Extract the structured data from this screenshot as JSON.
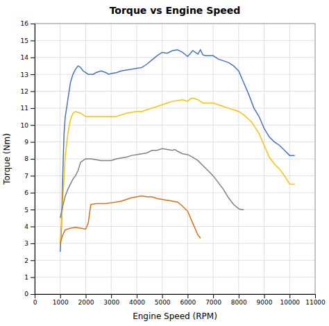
{
  "chart_data": {
    "type": "line",
    "title": "Torque vs Engine Speed",
    "xlabel": "Engine Speed (RPM)",
    "ylabel": "Torque (Nm)",
    "xlim": [
      0,
      11000
    ],
    "ylim": [
      0,
      16
    ],
    "xticks": [
      0,
      1000,
      2000,
      3000,
      4000,
      5000,
      6000,
      7000,
      8000,
      9000,
      10000,
      11000
    ],
    "yticks": [
      0,
      1,
      2,
      3,
      4,
      5,
      6,
      7,
      8,
      9,
      10,
      11,
      12,
      13,
      14,
      15,
      16
    ],
    "grid": true,
    "series": [
      {
        "color": "#4472C4",
        "x": [
          1000,
          1050,
          1100,
          1150,
          1200,
          1300,
          1400,
          1500,
          1600,
          1700,
          1800,
          1900,
          2000,
          2100,
          2200,
          2300,
          2400,
          2500,
          2600,
          2700,
          2800,
          2900,
          3000,
          3200,
          3400,
          3600,
          3800,
          4000,
          4200,
          4400,
          4600,
          4800,
          5000,
          5200,
          5400,
          5600,
          5800,
          6000,
          6200,
          6400,
          6500,
          6600,
          6700,
          6800,
          7000,
          7200,
          7400,
          7600,
          7800,
          8000,
          8200,
          8400,
          8600,
          8800,
          9000,
          9200,
          9400,
          9600,
          9800,
          10000,
          10200
        ],
        "values": [
          2.5,
          4.0,
          7.0,
          9.5,
          10.5,
          11.5,
          12.5,
          13.0,
          13.3,
          13.5,
          13.4,
          13.2,
          13.1,
          13.0,
          13.0,
          13.0,
          13.1,
          13.15,
          13.2,
          13.15,
          13.1,
          13.0,
          13.05,
          13.1,
          13.2,
          13.25,
          13.3,
          13.35,
          13.4,
          13.6,
          13.85,
          14.1,
          14.3,
          14.25,
          14.4,
          14.45,
          14.3,
          14.05,
          14.4,
          14.2,
          14.45,
          14.15,
          14.1,
          14.1,
          14.1,
          13.9,
          13.8,
          13.7,
          13.5,
          13.2,
          12.5,
          11.8,
          11.0,
          10.5,
          9.8,
          9.3,
          9.0,
          8.8,
          8.5,
          8.2,
          8.2
        ]
      },
      {
        "color": "#FFC000",
        "x": [
          1000,
          1100,
          1200,
          1300,
          1400,
          1500,
          1600,
          1700,
          1800,
          1900,
          2000,
          2200,
          2400,
          2600,
          2800,
          3000,
          3200,
          3400,
          3600,
          3800,
          4000,
          4200,
          4400,
          4600,
          4800,
          5000,
          5200,
          5400,
          5600,
          5800,
          6000,
          6100,
          6200,
          6300,
          6400,
          6600,
          6800,
          7000,
          7200,
          7400,
          7600,
          7800,
          8000,
          8200,
          8500,
          8800,
          9000,
          9200,
          9400,
          9600,
          9800,
          10000,
          10200
        ],
        "values": [
          3.0,
          5.5,
          8.2,
          9.5,
          10.3,
          10.7,
          10.8,
          10.75,
          10.7,
          10.6,
          10.5,
          10.5,
          10.5,
          10.5,
          10.5,
          10.5,
          10.5,
          10.6,
          10.7,
          10.75,
          10.8,
          10.8,
          10.9,
          11.0,
          11.1,
          11.2,
          11.3,
          11.4,
          11.45,
          11.5,
          11.4,
          11.55,
          11.6,
          11.55,
          11.5,
          11.3,
          11.3,
          11.3,
          11.2,
          11.1,
          11.0,
          10.9,
          10.8,
          10.6,
          10.2,
          9.5,
          8.8,
          8.1,
          7.7,
          7.4,
          7.0,
          6.5,
          6.5
        ]
      },
      {
        "color": "#808080",
        "x": [
          1000,
          1100,
          1200,
          1300,
          1400,
          1500,
          1600,
          1700,
          1800,
          1900,
          2000,
          2200,
          2400,
          2600,
          2800,
          3000,
          3200,
          3400,
          3600,
          3800,
          4000,
          4200,
          4400,
          4600,
          4800,
          5000,
          5200,
          5400,
          5500,
          5600,
          5800,
          6000,
          6200,
          6400,
          6600,
          6800,
          7000,
          7200,
          7400,
          7600,
          7800,
          8000,
          8100,
          8200
        ],
        "values": [
          4.5,
          5.2,
          5.8,
          6.2,
          6.5,
          6.8,
          7.0,
          7.3,
          7.8,
          7.9,
          8.0,
          8.0,
          7.95,
          7.9,
          7.9,
          7.9,
          8.0,
          8.05,
          8.1,
          8.2,
          8.25,
          8.3,
          8.35,
          8.5,
          8.5,
          8.6,
          8.55,
          8.5,
          8.55,
          8.45,
          8.3,
          8.25,
          8.1,
          7.9,
          7.6,
          7.3,
          7.0,
          6.6,
          6.2,
          5.7,
          5.3,
          5.05,
          5.0,
          5.0
        ]
      },
      {
        "color": "#E36C09",
        "x": [
          1000,
          1100,
          1200,
          1400,
          1600,
          1800,
          2000,
          2100,
          2200,
          2400,
          2600,
          2800,
          3000,
          3200,
          3400,
          3600,
          3800,
          4000,
          4200,
          4400,
          4600,
          4800,
          5000,
          5200,
          5400,
          5600,
          5800,
          6000,
          6200,
          6400,
          6500
        ],
        "values": [
          3.0,
          3.5,
          3.8,
          3.9,
          3.95,
          3.9,
          3.85,
          4.2,
          5.3,
          5.35,
          5.35,
          5.35,
          5.4,
          5.45,
          5.5,
          5.6,
          5.7,
          5.75,
          5.8,
          5.75,
          5.75,
          5.65,
          5.6,
          5.55,
          5.5,
          5.45,
          5.2,
          4.9,
          4.2,
          3.5,
          3.3
        ]
      }
    ]
  }
}
